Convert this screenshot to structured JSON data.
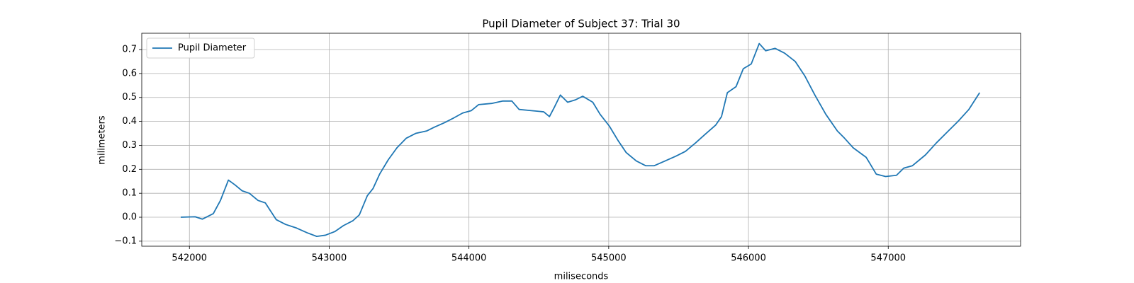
{
  "chart_data": {
    "type": "line",
    "title": "Pupil Diameter of Subject 37: Trial 30",
    "x_label": "miliseconds",
    "y_label": "milimeters",
    "legend": "upper left",
    "grid": true,
    "xlim": [
      541659,
      547947
    ],
    "ylim": [
      -0.121,
      0.768
    ],
    "xticks": [
      542000,
      543000,
      544000,
      545000,
      546000,
      547000
    ],
    "yticks": [
      {
        "value": -0.1,
        "label": "−0.1"
      },
      {
        "value": 0,
        "label": "0.0"
      },
      0.1,
      0.2,
      0.3,
      0.4,
      0.5,
      0.6,
      0.7
    ],
    "x": [
      541938,
      542041,
      542093,
      542171,
      542222,
      542279,
      542326,
      542378,
      542429,
      542491,
      542543,
      542621,
      542688,
      542766,
      542843,
      542911,
      542973,
      543040,
      543102,
      543169,
      543216,
      543273,
      543314,
      543361,
      543423,
      543485,
      543552,
      543619,
      543697,
      543749,
      543826,
      543893,
      543955,
      544017,
      544069,
      544162,
      544240,
      544307,
      544359,
      544447,
      544535,
      544576,
      544612,
      544654,
      544706,
      544762,
      544814,
      544886,
      544938,
      545005,
      545067,
      545125,
      545197,
      545264,
      545326,
      545404,
      545481,
      545549,
      545621,
      545688,
      545766,
      545807,
      545849,
      545911,
      545963,
      546020,
      546077,
      546123,
      546190,
      546258,
      546335,
      546403,
      546475,
      546553,
      546636,
      546687,
      546749,
      546842,
      546863,
      546914,
      546981,
      547059,
      547111,
      547173,
      547266,
      547344,
      547421,
      547499,
      547577,
      547654
    ],
    "series": [
      {
        "name": "Pupil Diameter",
        "color": "#1f77b4",
        "values": [
          0.0,
          0.002,
          -0.008,
          0.015,
          0.07,
          0.155,
          0.135,
          0.11,
          0.1,
          0.07,
          0.06,
          -0.01,
          -0.03,
          -0.045,
          -0.065,
          -0.08,
          -0.075,
          -0.06,
          -0.035,
          -0.015,
          0.01,
          0.09,
          0.12,
          0.18,
          0.24,
          0.29,
          0.33,
          0.35,
          0.36,
          0.375,
          0.395,
          0.415,
          0.435,
          0.445,
          0.47,
          0.475,
          0.485,
          0.485,
          0.45,
          0.445,
          0.44,
          0.42,
          0.46,
          0.51,
          0.48,
          0.49,
          0.505,
          0.48,
          0.43,
          0.38,
          0.32,
          0.27,
          0.235,
          0.215,
          0.215,
          0.235,
          0.255,
          0.275,
          0.31,
          0.345,
          0.385,
          0.42,
          0.52,
          0.545,
          0.62,
          0.64,
          0.725,
          0.695,
          0.705,
          0.685,
          0.65,
          0.59,
          0.51,
          0.43,
          0.36,
          0.33,
          0.29,
          0.25,
          0.23,
          0.18,
          0.17,
          0.175,
          0.205,
          0.215,
          0.26,
          0.31,
          0.355,
          0.4,
          0.45,
          0.52
        ]
      }
    ]
  }
}
